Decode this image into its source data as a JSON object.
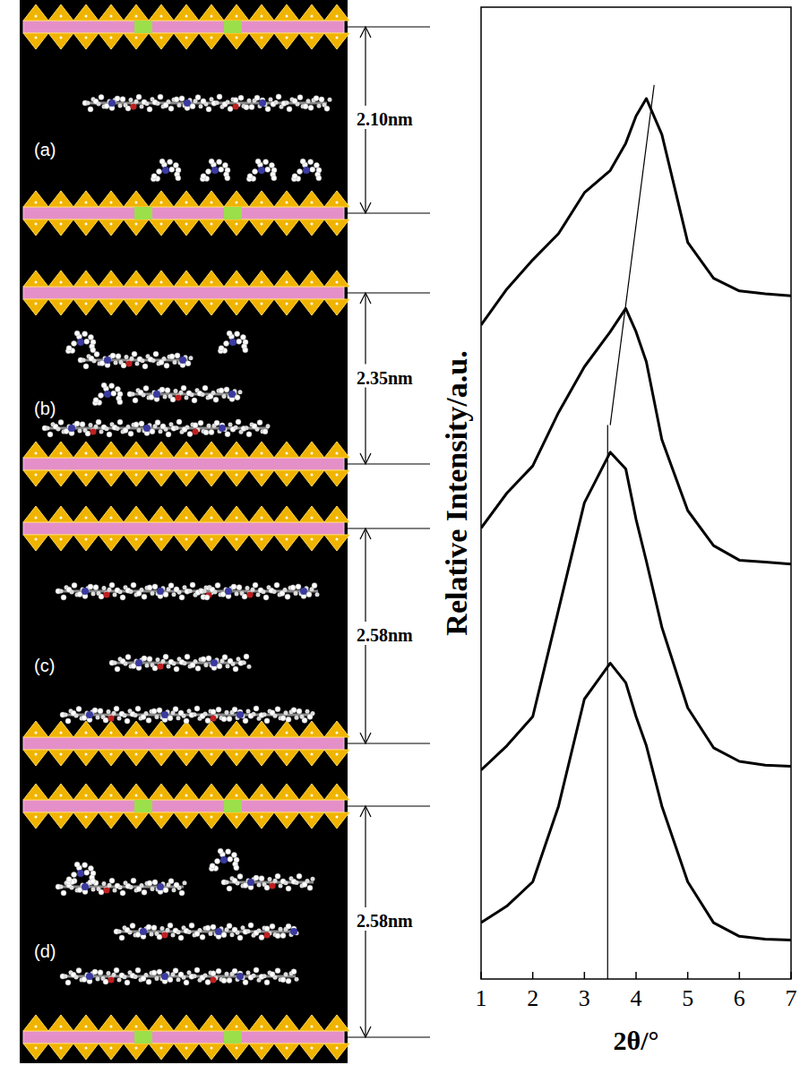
{
  "chart_data": {
    "type": "line",
    "xlabel": "2θ/°",
    "ylabel": "Relative Intensity/a.u.",
    "x": [
      1,
      1.5,
      2,
      2.5,
      3,
      3.5,
      3.8,
      4,
      4.2,
      4.5,
      5,
      5.5,
      6,
      6.5,
      7
    ],
    "series": [
      {
        "color": "#000000",
        "values": [
          67.3,
          71,
          74,
          76.7,
          80.9,
          83.2,
          86,
          88.8,
          90.6,
          86.9,
          75.8,
          72.1,
          70.8,
          70.5,
          70.3
        ]
      },
      {
        "color": "#000000",
        "values": [
          46.4,
          50,
          52.8,
          58.3,
          63,
          66.6,
          69,
          66.6,
          63.5,
          55.5,
          48.2,
          44.6,
          43.1,
          42.9,
          42.7
        ]
      },
      {
        "color": "#000000",
        "values": [
          21.5,
          24,
          27,
          38,
          49,
          54.2,
          52.5,
          47.3,
          43,
          36.2,
          27.9,
          23.8,
          22.4,
          22,
          21.9
        ]
      },
      {
        "color": "#000000",
        "values": [
          5.8,
          7.5,
          10,
          17.8,
          28.8,
          32.5,
          30.5,
          27,
          24,
          17.8,
          10,
          5.8,
          4.4,
          4.1,
          4.0
        ]
      }
    ],
    "reference_lines": [
      {
        "x": [
          3.45,
          3.45
        ],
        "y": [
          0,
          57
        ]
      },
      {
        "x": [
          3.5,
          4.35
        ],
        "y": [
          57,
          92
        ]
      }
    ],
    "xlim": [
      1,
      7
    ],
    "xticks": [
      1,
      2,
      3,
      4,
      5,
      6,
      7
    ],
    "ylim": [
      0,
      100
    ],
    "yticks": [],
    "tick_labels": "x",
    "grid": false
  },
  "structures": [
    {
      "label": "(a)",
      "spacing": "2.10nm"
    },
    {
      "label": "(b)",
      "spacing": "2.35nm"
    },
    {
      "label": "(c)",
      "spacing": "2.58nm"
    },
    {
      "label": "(d)",
      "spacing": "2.58nm"
    }
  ]
}
